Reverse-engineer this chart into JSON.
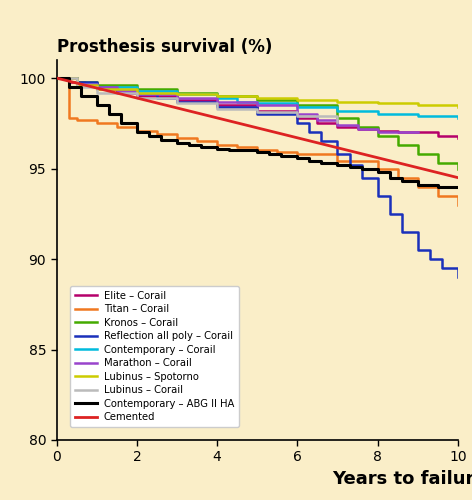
{
  "title": "Prosthesis survival (%)",
  "xlabel": "Years to failure",
  "xlim": [
    0,
    10
  ],
  "ylim": [
    80,
    101
  ],
  "yticks": [
    80,
    85,
    90,
    95,
    100
  ],
  "xticks": [
    0,
    2,
    4,
    6,
    8,
    10
  ],
  "background_color": "#faeec8",
  "curves": {
    "Elite - Corail": {
      "color": "#b5006b",
      "x": [
        0,
        0.3,
        0.7,
        1.0,
        1.5,
        2.0,
        3.0,
        4.0,
        5.0,
        6.0,
        6.5,
        7.0,
        7.5,
        8.0,
        8.5,
        9.0,
        9.5,
        10.0
      ],
      "y": [
        100,
        99.8,
        99.6,
        99.4,
        99.2,
        99.0,
        98.8,
        98.5,
        98.2,
        97.8,
        97.5,
        97.3,
        97.2,
        97.1,
        97.0,
        97.0,
        96.8,
        96.7
      ],
      "lw": 1.8,
      "step": true
    },
    "Titan - Corail": {
      "color": "#f07820",
      "x": [
        0,
        0.3,
        0.5,
        1.0,
        1.5,
        2.0,
        2.5,
        3.0,
        3.5,
        4.0,
        4.5,
        5.0,
        5.5,
        6.0,
        7.0,
        8.0,
        8.5,
        9.0,
        9.5,
        10.0
      ],
      "y": [
        100,
        97.8,
        97.7,
        97.5,
        97.3,
        97.1,
        96.9,
        96.7,
        96.5,
        96.3,
        96.2,
        96.0,
        95.9,
        95.8,
        95.4,
        95.0,
        94.5,
        94.0,
        93.5,
        93.0
      ],
      "lw": 1.8,
      "step": true
    },
    "Kronos - Corail": {
      "color": "#44aa00",
      "x": [
        0,
        0.5,
        1.0,
        2.0,
        3.0,
        4.0,
        5.0,
        6.0,
        7.0,
        7.5,
        8.0,
        8.5,
        9.0,
        9.5,
        10.0
      ],
      "y": [
        100,
        99.8,
        99.6,
        99.4,
        99.2,
        99.0,
        98.8,
        98.5,
        97.8,
        97.3,
        96.8,
        96.3,
        95.8,
        95.3,
        95.0
      ],
      "lw": 1.8,
      "step": true
    },
    "Reflection all poly - Corail": {
      "color": "#1a30bb",
      "x": [
        0,
        0.5,
        1.0,
        1.5,
        2.0,
        2.5,
        3.0,
        4.0,
        5.0,
        6.0,
        6.3,
        6.6,
        7.0,
        7.3,
        7.6,
        8.0,
        8.3,
        8.6,
        9.0,
        9.3,
        9.6,
        10.0
      ],
      "y": [
        100,
        99.8,
        99.5,
        99.3,
        99.1,
        98.9,
        98.7,
        98.4,
        98.0,
        97.5,
        97.0,
        96.5,
        95.8,
        95.2,
        94.5,
        93.5,
        92.5,
        91.5,
        90.5,
        90.0,
        89.5,
        89.0
      ],
      "lw": 1.8,
      "step": true
    },
    "Contemporary - Corail": {
      "color": "#00bbdd",
      "x": [
        0,
        0.5,
        1.0,
        2.0,
        3.0,
        4.0,
        4.5,
        5.0,
        6.0,
        7.0,
        8.0,
        9.0,
        10.0
      ],
      "y": [
        100,
        99.7,
        99.5,
        99.3,
        99.1,
        98.9,
        98.7,
        98.6,
        98.4,
        98.2,
        98.0,
        97.9,
        97.8
      ],
      "lw": 1.8,
      "step": true
    },
    "Marathon - Corail": {
      "color": "#9944cc",
      "x": [
        0,
        0.5,
        1.0,
        1.5,
        2.0,
        3.0,
        4.0,
        5.0,
        6.0,
        6.5,
        7.0,
        7.5,
        8.0,
        8.5,
        9.0
      ],
      "y": [
        100,
        99.7,
        99.5,
        99.3,
        99.1,
        98.9,
        98.7,
        98.5,
        98.0,
        97.7,
        97.4,
        97.2,
        97.0,
        97.0,
        97.0
      ],
      "lw": 1.8,
      "step": true
    },
    "Lubinus - Spotorno": {
      "color": "#cccc00",
      "x": [
        0,
        0.5,
        1.0,
        2.0,
        3.0,
        4.0,
        5.0,
        6.0,
        7.0,
        8.0,
        9.0,
        10.0
      ],
      "y": [
        100,
        99.6,
        99.4,
        99.2,
        99.1,
        99.0,
        98.9,
        98.8,
        98.7,
        98.6,
        98.5,
        98.4
      ],
      "lw": 1.8,
      "step": true
    },
    "Lubinus - Corail": {
      "color": "#bbbbbb",
      "x": [
        0,
        0.5,
        1.0,
        2.0,
        3.0,
        4.0,
        5.0,
        6.0,
        7.0
      ],
      "y": [
        100,
        99.5,
        99.2,
        98.9,
        98.6,
        98.3,
        98.1,
        97.9,
        97.6
      ],
      "lw": 1.8,
      "step": true
    },
    "Contemporary - ABG II HA": {
      "color": "#000000",
      "x": [
        0,
        0.3,
        0.6,
        1.0,
        1.3,
        1.6,
        2.0,
        2.3,
        2.6,
        3.0,
        3.3,
        3.6,
        4.0,
        4.3,
        4.6,
        5.0,
        5.3,
        5.6,
        6.0,
        6.3,
        6.6,
        7.0,
        7.3,
        7.6,
        8.0,
        8.3,
        8.6,
        9.0,
        9.5,
        10.0
      ],
      "y": [
        100,
        99.5,
        99.0,
        98.5,
        98.0,
        97.5,
        97.0,
        96.8,
        96.6,
        96.4,
        96.3,
        96.2,
        96.1,
        96.0,
        96.0,
        95.9,
        95.8,
        95.7,
        95.6,
        95.4,
        95.3,
        95.2,
        95.1,
        95.0,
        94.8,
        94.5,
        94.3,
        94.1,
        94.0,
        94.0
      ],
      "lw": 2.2,
      "step": true
    },
    "Cemented": {
      "color": "#dd2222",
      "x": [
        0,
        10
      ],
      "y": [
        100,
        94.5
      ],
      "lw": 2.0,
      "step": false
    }
  },
  "legend_order": [
    "Elite - Corail",
    "Titan - Corail",
    "Kronos - Corail",
    "Reflection all poly - Corail",
    "Contemporary - Corail",
    "Marathon - Corail",
    "Lubinus - Spotorno",
    "Lubinus - Corail",
    "Contemporary - ABG II HA",
    "Cemented"
  ],
  "legend_labels": {
    "Elite - Corail": "Elite – Corail",
    "Titan - Corail": "Titan – Corail",
    "Kronos - Corail": "Kronos – Corail",
    "Reflection all poly - Corail": "Reflection all poly – Corail",
    "Contemporary - Corail": "Contemporary – Corail",
    "Marathon - Corail": "Marathon – Corail",
    "Lubinus - Spotorno": "Lubinus – Spotorno",
    "Lubinus - Corail": "Lubinus – Corail",
    "Contemporary - ABG II HA": "Contemporary – ABG II HA",
    "Cemented": "Cemented"
  }
}
